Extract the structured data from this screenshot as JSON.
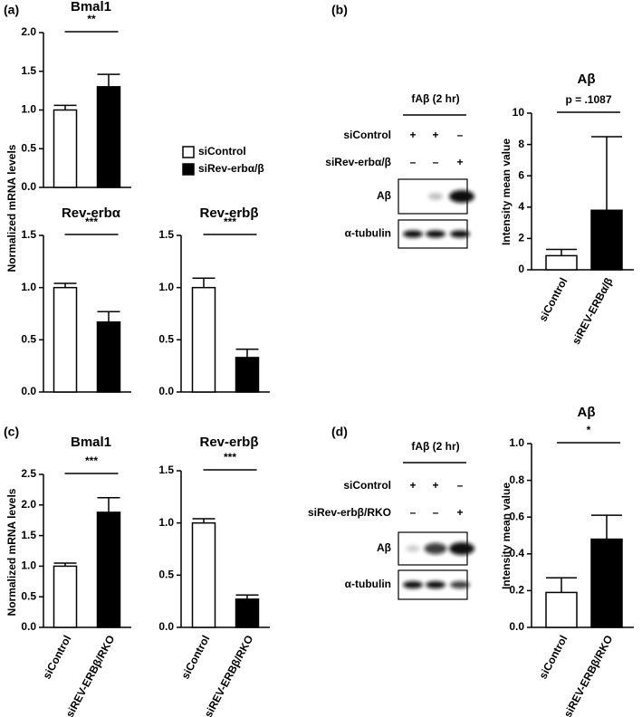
{
  "panels": [
    "(a)",
    "(b)",
    "(c)",
    "(d)"
  ],
  "legend": [
    {
      "name": "siControl",
      "color": "#ffffff"
    },
    {
      "name": "siRev-erbα/β",
      "color": "#000000"
    }
  ],
  "blots": [
    {
      "treatment": "fAβ (2 hr)",
      "rows": [
        {
          "label": "siControl",
          "marks": [
            "+",
            "+",
            "–"
          ]
        },
        {
          "label": "siRev-erbα/β",
          "marks": [
            "–",
            "–",
            "+"
          ]
        }
      ],
      "bands": [
        "Aβ",
        "α-tubulin"
      ]
    },
    {
      "treatment": "fAβ (2 hr)",
      "rows": [
        {
          "label": "siControl",
          "marks": [
            "+",
            "+",
            "–"
          ]
        },
        {
          "label": "siRev-erbβ/RKO",
          "marks": [
            "–",
            "–",
            "+"
          ]
        }
      ],
      "bands": [
        "Aβ",
        "α-tubulin"
      ]
    }
  ],
  "chart_data": [
    {
      "type": "bar",
      "title": "Bmal1",
      "ylabel": "Normalized mRNA levels",
      "significance": "**",
      "categories": [
        null,
        null
      ],
      "values": [
        1.0,
        1.3
      ],
      "errors": [
        0.06,
        0.16
      ],
      "colors": [
        "#ffffff",
        "#000000"
      ],
      "ylim": [
        0,
        2
      ],
      "yticks": [
        {
          "value": 0,
          "label": "0.0"
        },
        {
          "value": 0.5,
          "label": "0.5"
        },
        {
          "value": 1,
          "label": "1.0"
        },
        {
          "value": 1.5,
          "label": "1.5"
        },
        {
          "value": 2,
          "label": "2.0"
        }
      ]
    },
    {
      "type": "bar",
      "title": "Rev-erbα",
      "significance": "***",
      "categories": [
        null,
        null
      ],
      "values": [
        1.0,
        0.67
      ],
      "errors": [
        0.04,
        0.1
      ],
      "colors": [
        "#ffffff",
        "#000000"
      ],
      "ylim": [
        0,
        1.5
      ],
      "yticks": [
        {
          "value": 0,
          "label": "0.0"
        },
        {
          "value": 0.5,
          "label": "0.5"
        },
        {
          "value": 1,
          "label": "1.0"
        },
        {
          "value": 1.5,
          "label": "1.5"
        }
      ]
    },
    {
      "type": "bar",
      "title": "Rev-erbβ",
      "significance": "***",
      "categories": [
        null,
        null
      ],
      "values": [
        1.0,
        0.33
      ],
      "errors": [
        0.09,
        0.08
      ],
      "colors": [
        "#ffffff",
        "#000000"
      ],
      "ylim": [
        0,
        1.5
      ],
      "yticks": [
        {
          "value": 0,
          "label": "0.0"
        },
        {
          "value": 0.5,
          "label": "0.5"
        },
        {
          "value": 1,
          "label": "1.0"
        },
        {
          "value": 1.5,
          "label": "1.5"
        }
      ]
    },
    {
      "type": "bar",
      "title": "Aβ",
      "ylabel": "Intensity mean value",
      "significance": "p = .1087",
      "categories": [
        "siControl",
        "siREV-ERBα/β"
      ],
      "values": [
        0.9,
        3.8
      ],
      "errors": [
        0.4,
        4.7
      ],
      "colors": [
        "#ffffff",
        "#000000"
      ],
      "ylim": [
        0,
        10
      ],
      "yticks": [
        0,
        2,
        4,
        6,
        8,
        10
      ]
    },
    {
      "type": "bar",
      "title": "Bmal1",
      "ylabel": "Normalized mRNA levels",
      "significance": "***",
      "categories": [
        "siControl",
        "siREV-ERBβ/RKO"
      ],
      "values": [
        1.0,
        1.88
      ],
      "errors": [
        0.05,
        0.24
      ],
      "colors": [
        "#ffffff",
        "#000000"
      ],
      "ylim": [
        0,
        2.5
      ],
      "yticks": [
        {
          "value": 0,
          "label": "0.0"
        },
        {
          "value": 0.5,
          "label": "0.5"
        },
        {
          "value": 1,
          "label": "1.0"
        },
        {
          "value": 1.5,
          "label": "1.5"
        },
        {
          "value": 2,
          "label": "2.0"
        },
        {
          "value": 2.5,
          "label": "2.5"
        }
      ]
    },
    {
      "type": "bar",
      "title": "Rev-erbβ",
      "significance": "***",
      "categories": [
        "siControl",
        "siREV-ERBβ/RKO"
      ],
      "values": [
        1.0,
        0.27
      ],
      "errors": [
        0.04,
        0.04
      ],
      "colors": [
        "#ffffff",
        "#000000"
      ],
      "ylim": [
        0,
        1.5
      ],
      "yticks": [
        {
          "value": 0,
          "label": "0.0"
        },
        {
          "value": 0.5,
          "label": "0.5"
        },
        {
          "value": 1,
          "label": "1.0"
        },
        {
          "value": 1.5,
          "label": "1.5"
        }
      ]
    },
    {
      "type": "bar",
      "title": "Aβ",
      "ylabel": "Intensity mean value",
      "significance": "*",
      "categories": [
        "siControl",
        "siREV-ERBβ/RKO"
      ],
      "values": [
        0.19,
        0.48
      ],
      "errors": [
        0.08,
        0.13
      ],
      "colors": [
        "#ffffff",
        "#000000"
      ],
      "ylim": [
        0,
        1
      ],
      "yticks": [
        {
          "value": 0,
          "label": "0.0"
        },
        {
          "value": 0.2,
          "label": "0.2"
        },
        {
          "value": 0.4,
          "label": "0.4"
        },
        {
          "value": 0.6,
          "label": "0.6"
        },
        {
          "value": 0.8,
          "label": "0.8"
        },
        {
          "value": 1,
          "label": "1.0"
        }
      ]
    }
  ]
}
